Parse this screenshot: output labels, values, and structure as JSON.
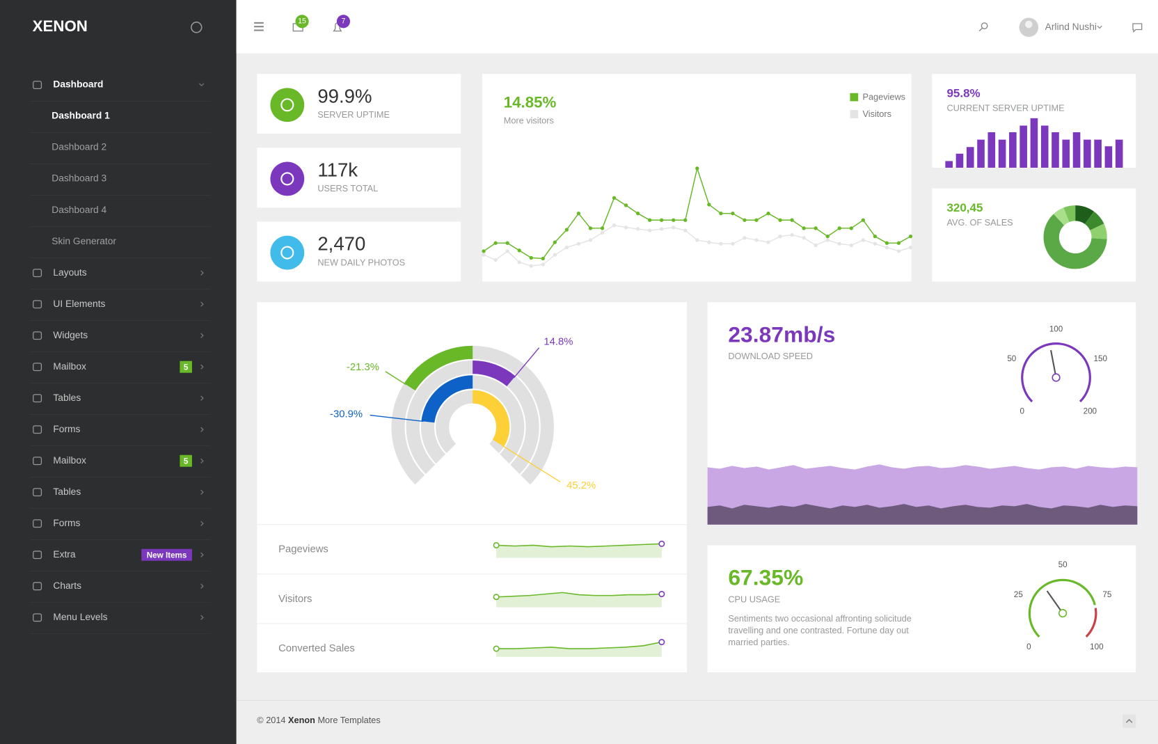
{
  "brand": "XENON",
  "header": {
    "messages": 15,
    "notifications": 7,
    "user": "Arlind Nushi"
  },
  "sidebar": {
    "items": [
      {
        "label": "Dashboard",
        "children": [
          "Dashboard 1",
          "Dashboard 2",
          "Dashboard 3",
          "Dashboard 4",
          "Skin Generator"
        ]
      },
      {
        "label": "Layouts"
      },
      {
        "label": "UI Elements"
      },
      {
        "label": "Widgets"
      },
      {
        "label": "Mailbox",
        "badge": 5
      },
      {
        "label": "Tables"
      },
      {
        "label": "Forms"
      },
      {
        "label": "Mailbox",
        "badge": 5
      },
      {
        "label": "Tables"
      },
      {
        "label": "Forms"
      },
      {
        "label": "Extra",
        "badge": "New Items"
      },
      {
        "label": "Charts"
      },
      {
        "label": "Menu Levels"
      }
    ]
  },
  "stats": [
    {
      "value": "99.9%",
      "label": "SERVER UPTIME",
      "color": "#68b828"
    },
    {
      "value": "117k",
      "label": "USERS TOTAL",
      "color": "#7c38bc"
    },
    {
      "value": "2,470",
      "label": "NEW DAILY PHOTOS",
      "color": "#40bbea"
    }
  ],
  "visitors_chart": {
    "type": "line",
    "title": "14.85%",
    "subtitle": "More visitors",
    "series": [
      {
        "name": "Pageviews",
        "color": "#68b828",
        "values": [
          40,
          51,
          51,
          41,
          31,
          30,
          52,
          69,
          91,
          71,
          71,
          112,
          102,
          91,
          82,
          82,
          82,
          82,
          152,
          103,
          91,
          91,
          82,
          82,
          91,
          82,
          82,
          71,
          71,
          60,
          71,
          71,
          82,
          60,
          51,
          51,
          60
        ]
      },
      {
        "name": "Visitors",
        "color": "#e4e4e4",
        "values": [
          35,
          28,
          40,
          25,
          20,
          22,
          35,
          45,
          50,
          55,
          65,
          75,
          72,
          70,
          68,
          70,
          72,
          68,
          55,
          52,
          50,
          50,
          58,
          55,
          52,
          60,
          62,
          58,
          48,
          55,
          50,
          48,
          55,
          50,
          45,
          40,
          45
        ]
      }
    ]
  },
  "uptime_chart": {
    "type": "bar",
    "title": "95.8%",
    "subtitle": "CURRENT SERVER UPTIME",
    "color": "#7c38bc",
    "values": [
      9,
      19,
      28,
      38,
      48,
      38,
      48,
      57,
      67,
      57,
      48,
      38,
      48,
      38,
      38,
      29,
      38
    ]
  },
  "sales_chart": {
    "type": "pie",
    "title": "320,45",
    "subtitle": "AVG. OF SALES",
    "values": [
      10,
      8,
      8,
      62,
      6,
      6
    ],
    "colors": [
      "#1f5e1a",
      "#3d8a2e",
      "#8fd16f",
      "#5aa846",
      "#a9de8b",
      "#7cc35a"
    ]
  },
  "radial_chart": {
    "type": "radial-bar",
    "values": [
      -21.3,
      14.8,
      -30.9,
      45.2
    ],
    "value_labels": [
      "-21.3%",
      "14.8%",
      "-30.9%",
      "45.2%"
    ],
    "colors": [
      "#68b828",
      "#7c38bc",
      "#0e62c7",
      "#fcd036"
    ]
  },
  "sparklines": [
    {
      "type": "line",
      "name": "Pageviews",
      "values": [
        17,
        16,
        17,
        15,
        16,
        15,
        16,
        17,
        18,
        19
      ]
    },
    {
      "type": "line",
      "name": "Visitors",
      "values": [
        14,
        15,
        16,
        18,
        20,
        17,
        16,
        16,
        17,
        17,
        18
      ]
    },
    {
      "type": "line",
      "name": "Converted Sales",
      "values": [
        11,
        11,
        12,
        13,
        11,
        11,
        12,
        13,
        15,
        20
      ]
    }
  ],
  "download": {
    "title": "23.87mb/s",
    "subtitle": "DOWNLOAD SPEED",
    "gauge": {
      "type": "gauge",
      "value": 92,
      "range": [
        0,
        200
      ],
      "ticks": [
        0,
        50,
        100,
        150,
        200
      ],
      "color": "#7c38bc"
    },
    "area": {
      "type": "area",
      "series": [
        {
          "color": "#c9a6e4",
          "values": [
            78,
            76,
            80,
            77,
            79,
            75,
            78,
            81,
            76,
            78,
            80,
            77,
            75,
            79,
            82,
            78,
            76,
            79,
            80,
            77,
            78,
            81,
            79,
            76,
            78,
            80,
            77,
            75,
            78,
            79,
            76,
            80,
            78,
            77,
            79,
            78
          ]
        },
        {
          "color": "#6d5a7d",
          "values": [
            24,
            26,
            22,
            27,
            25,
            23,
            26,
            24,
            28,
            25,
            22,
            26,
            24,
            27,
            23,
            25,
            28,
            24,
            26,
            22,
            25,
            27,
            24,
            23,
            26,
            25,
            28,
            24,
            22,
            26,
            25,
            23,
            27,
            24,
            26,
            25
          ]
        }
      ]
    }
  },
  "cpu": {
    "title": "67.35%",
    "subtitle": "CPU USAGE",
    "description": [
      "Sentiments two occasional affronting solicitude",
      "travelling and one contrasted. Fortune day out",
      "married parties."
    ],
    "gauge": {
      "type": "gauge",
      "value": 37,
      "range": [
        0,
        100
      ],
      "ticks": [
        0,
        25,
        50,
        75,
        100
      ],
      "bands": [
        {
          "from": 0,
          "to": 78,
          "color": "#68b828"
        },
        {
          "from": 80,
          "to": 100,
          "color": "#cc3f44"
        }
      ]
    }
  },
  "footer": {
    "copyright": "© 2014",
    "brand": "Xenon",
    "link": "More Templates"
  }
}
